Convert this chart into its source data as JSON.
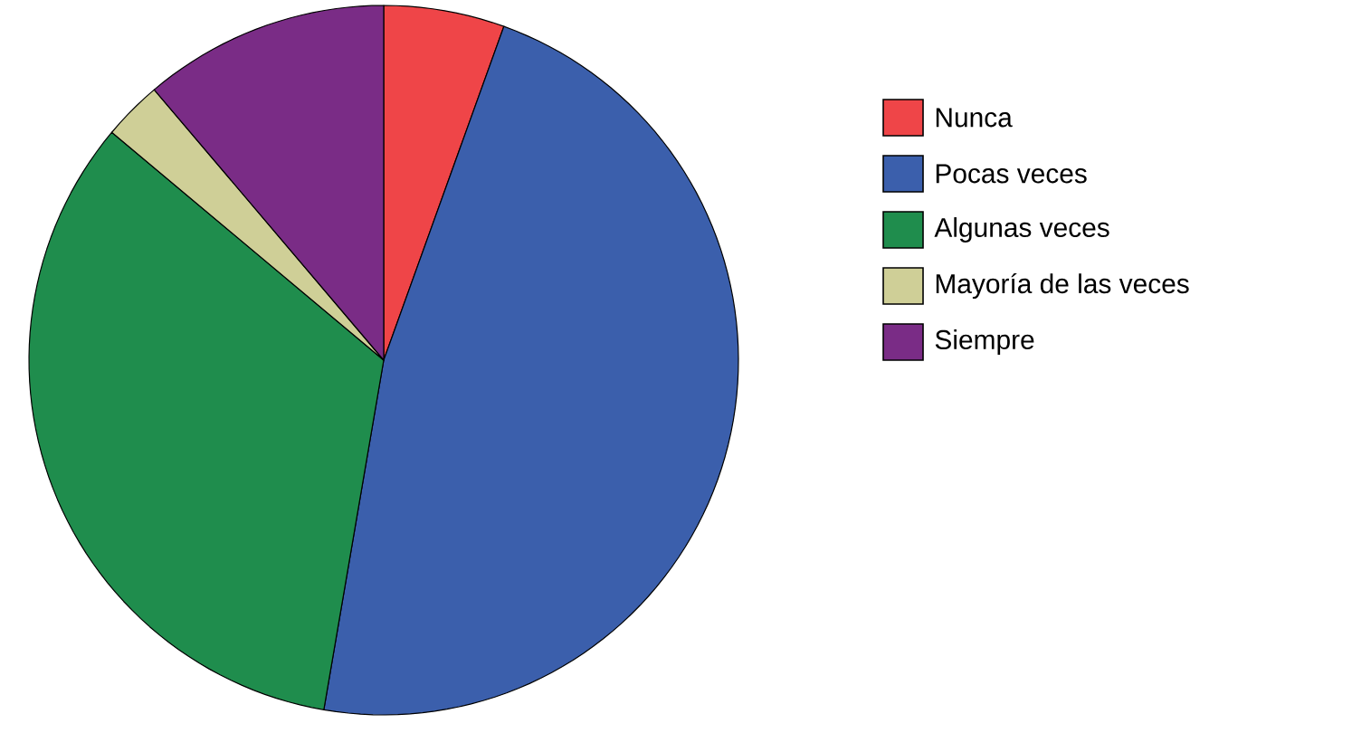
{
  "chart_data": {
    "type": "pie",
    "categories": [
      "Nunca",
      "Pocas veces",
      "Algunas veces",
      "Mayoría de las veces",
      "Siempre"
    ],
    "values": [
      5.5,
      47.2,
      33.4,
      2.7,
      11.2
    ],
    "colors": [
      "#ef4548",
      "#3b5fac",
      "#1f8d4d",
      "#cfcf97",
      "#7a2c86"
    ],
    "legend": "right"
  }
}
